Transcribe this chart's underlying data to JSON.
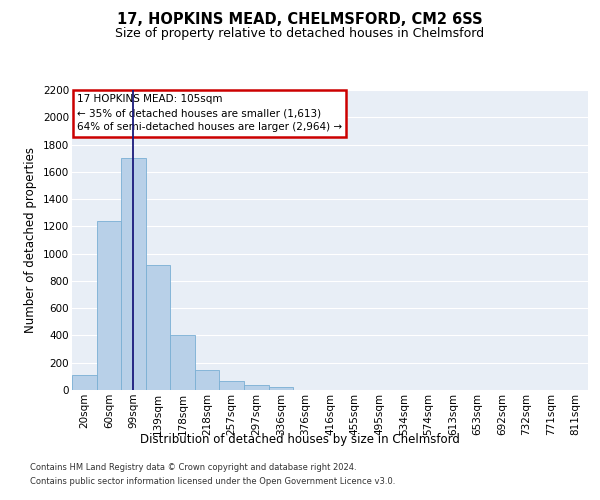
{
  "title": "17, HOPKINS MEAD, CHELMSFORD, CM2 6SS",
  "subtitle": "Size of property relative to detached houses in Chelmsford",
  "xlabel": "Distribution of detached houses by size in Chelmsford",
  "ylabel": "Number of detached properties",
  "footnote1": "Contains HM Land Registry data © Crown copyright and database right 2024.",
  "footnote2": "Contains public sector information licensed under the Open Government Licence v3.0.",
  "bins": [
    "20sqm",
    "60sqm",
    "99sqm",
    "139sqm",
    "178sqm",
    "218sqm",
    "257sqm",
    "297sqm",
    "336sqm",
    "376sqm",
    "416sqm",
    "455sqm",
    "495sqm",
    "534sqm",
    "574sqm",
    "613sqm",
    "653sqm",
    "692sqm",
    "732sqm",
    "771sqm",
    "811sqm"
  ],
  "values": [
    110,
    1240,
    1700,
    920,
    400,
    150,
    65,
    35,
    25,
    0,
    0,
    0,
    0,
    0,
    0,
    0,
    0,
    0,
    0,
    0,
    0
  ],
  "bar_color": "#b8d0e8",
  "bar_edge_color": "#7aafd4",
  "vline_x": 2,
  "vline_color": "#1a1a7c",
  "annotation_box_text": "17 HOPKINS MEAD: 105sqm\n← 35% of detached houses are smaller (1,613)\n64% of semi-detached houses are larger (2,964) →",
  "annotation_box_color": "#cc0000",
  "ylim": [
    0,
    2200
  ],
  "yticks": [
    0,
    200,
    400,
    600,
    800,
    1000,
    1200,
    1400,
    1600,
    1800,
    2000,
    2200
  ],
  "bg_color": "#e8eef6",
  "grid_color": "#ffffff",
  "title_fontsize": 10.5,
  "subtitle_fontsize": 9,
  "axis_label_fontsize": 8.5,
  "tick_fontsize": 7.5,
  "annotation_fontsize": 7.5
}
